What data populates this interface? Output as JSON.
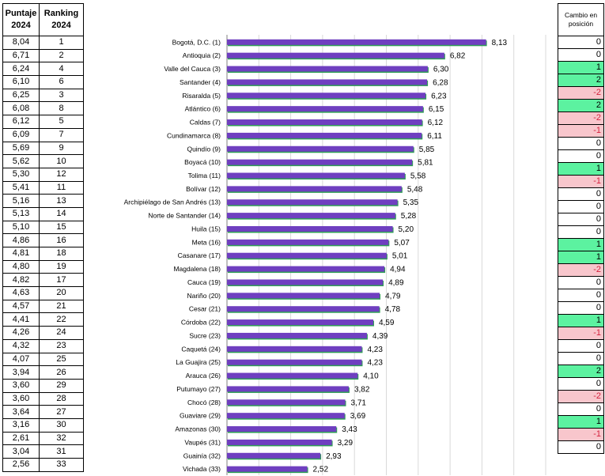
{
  "left_table": {
    "col1_header": [
      "Puntaje",
      "2024"
    ],
    "col2_header": [
      "Ranking",
      "2024"
    ],
    "rows": [
      [
        "8,04",
        "1"
      ],
      [
        "6,71",
        "2"
      ],
      [
        "6,24",
        "4"
      ],
      [
        "6,10",
        "6"
      ],
      [
        "6,25",
        "3"
      ],
      [
        "6,08",
        "8"
      ],
      [
        "6,12",
        "5"
      ],
      [
        "6,09",
        "7"
      ],
      [
        "5,69",
        "9"
      ],
      [
        "5,62",
        "10"
      ],
      [
        "5,30",
        "12"
      ],
      [
        "5,41",
        "11"
      ],
      [
        "5,16",
        "13"
      ],
      [
        "5,13",
        "14"
      ],
      [
        "5,10",
        "15"
      ],
      [
        "4,86",
        "16"
      ],
      [
        "4,81",
        "18"
      ],
      [
        "4,80",
        "19"
      ],
      [
        "4,82",
        "17"
      ],
      [
        "4,63",
        "20"
      ],
      [
        "4,57",
        "21"
      ],
      [
        "4,41",
        "22"
      ],
      [
        "4,26",
        "24"
      ],
      [
        "4,32",
        "23"
      ],
      [
        "4,07",
        "25"
      ],
      [
        "3,94",
        "26"
      ],
      [
        "3,60",
        "29"
      ],
      [
        "3,60",
        "28"
      ],
      [
        "3,64",
        "27"
      ],
      [
        "3,16",
        "30"
      ],
      [
        "2,61",
        "32"
      ],
      [
        "3,04",
        "31"
      ],
      [
        "2,56",
        "33"
      ]
    ]
  },
  "right_table": {
    "header": [
      "Cambio en",
      "posición"
    ],
    "values": [
      "0",
      "0",
      "1",
      "2",
      "-2",
      "2",
      "-2",
      "-1",
      "0",
      "0",
      "1",
      "-1",
      "0",
      "0",
      "0",
      "0",
      "1",
      "1",
      "-2",
      "0",
      "0",
      "0",
      "1",
      "-1",
      "0",
      "0",
      "2",
      "0",
      "-2",
      "0",
      "1",
      "-1",
      "0"
    ],
    "colors": {
      "positive": "#5cf2a0",
      "negative": "#f8c6cc",
      "negative_text": "#d4213d",
      "neutral": "#ffffff"
    }
  },
  "chart_data": {
    "type": "bar",
    "orientation": "horizontal",
    "categories": [
      "Bogotá, D.C. (1)",
      "Antioquia (2)",
      "Valle del Cauca (3)",
      "Santander (4)",
      "Risaralda (5)",
      "Atlántico (6)",
      "Caldas (7)",
      "Cundinamarca (8)",
      "Quindío (9)",
      "Boyacá (10)",
      "Tolima (11)",
      "Bolívar (12)",
      "Archipiélago de San Andrés (13)",
      "Norte de Santander (14)",
      "Huila (15)",
      "Meta (16)",
      "Casanare (17)",
      "Magdalena (18)",
      "Cauca (19)",
      "Nariño (20)",
      "Cesar (21)",
      "Córdoba (22)",
      "Sucre (23)",
      "Caquetá (24)",
      "La Guajira (25)",
      "Arauca (26)",
      "Putumayo (27)",
      "Chocó (28)",
      "Guaviare (29)",
      "Amazonas (30)",
      "Vaupés (31)",
      "Guainía (32)",
      "Vichada (33)"
    ],
    "values": [
      8.13,
      6.82,
      6.3,
      6.28,
      6.23,
      6.15,
      6.12,
      6.11,
      5.85,
      5.81,
      5.58,
      5.48,
      5.35,
      5.28,
      5.2,
      5.07,
      5.01,
      4.94,
      4.89,
      4.79,
      4.78,
      4.59,
      4.39,
      4.23,
      4.23,
      4.1,
      3.82,
      3.71,
      3.69,
      3.43,
      3.29,
      2.93,
      2.52
    ],
    "value_labels": [
      "8,13",
      "6,82",
      "6,30",
      "6,28",
      "6,23",
      "6,15",
      "6,12",
      "6,11",
      "5,85",
      "5,81",
      "5,58",
      "5,48",
      "5,35",
      "5,28",
      "5,20",
      "5,07",
      "5,01",
      "4,94",
      "4,89",
      "4,79",
      "4,78",
      "4,59",
      "4,39",
      "4,23",
      "4,23",
      "4,10",
      "3,82",
      "3,71",
      "3,69",
      "3,43",
      "3,29",
      "2,93",
      "2,52"
    ],
    "xlim": [
      0,
      10
    ],
    "grid": true,
    "bar_color": "#6f3fc0",
    "bar_shadow_color": "#2e9e55"
  }
}
